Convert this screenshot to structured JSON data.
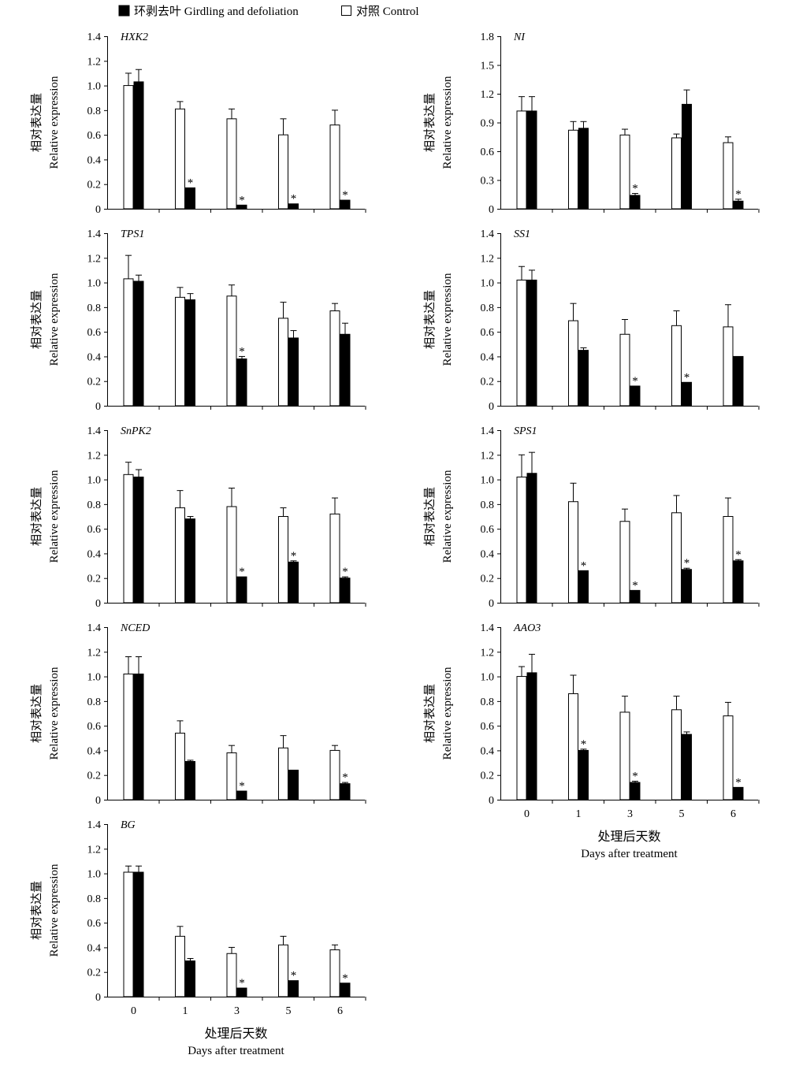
{
  "legend": {
    "girdled": "环剥去叶 Girdling and defoliation",
    "control": "对照 Control",
    "girdled_color": "#000000",
    "control_color": "#ffffff"
  },
  "y_label_cn": "相对表达量",
  "y_label_en": "Relative expression",
  "x_label_cn": "处理后天数",
  "x_label_en": "Days after treatment",
  "sig_marker": "*",
  "chart_data": [
    {
      "type": "bar",
      "gene": "HXK2",
      "categories": [
        "0",
        "1",
        "3",
        "5",
        "6"
      ],
      "ylim": [
        0,
        1.4
      ],
      "yticks": [
        "0",
        "0.2",
        "0.4",
        "0.6",
        "0.8",
        "1.0",
        "1.2",
        "1.4"
      ],
      "series": [
        {
          "name": "对照 Control",
          "values": [
            1.0,
            0.81,
            0.73,
            0.6,
            0.68
          ],
          "errors": [
            0.1,
            0.06,
            0.08,
            0.13,
            0.12
          ],
          "significant": [
            false,
            false,
            false,
            false,
            false
          ]
        },
        {
          "name": "环剥去叶 Girdling and defoliation",
          "values": [
            1.03,
            0.17,
            0.03,
            0.04,
            0.07
          ],
          "errors": [
            0.1,
            0,
            0,
            0,
            0
          ],
          "significant": [
            false,
            true,
            true,
            true,
            true
          ]
        }
      ]
    },
    {
      "type": "bar",
      "gene": "NI",
      "categories": [
        "0",
        "1",
        "3",
        "5",
        "6"
      ],
      "ylim": [
        0,
        1.8
      ],
      "yticks": [
        "0",
        "0.3",
        "0.6",
        "0.9",
        "1.2",
        "1.5",
        "1.8"
      ],
      "series": [
        {
          "name": "对照 Control",
          "values": [
            1.02,
            0.82,
            0.77,
            0.74,
            0.69
          ],
          "errors": [
            0.15,
            0.09,
            0.06,
            0.04,
            0.06
          ],
          "significant": [
            false,
            false,
            false,
            false,
            false
          ]
        },
        {
          "name": "环剥去叶 Girdling and defoliation",
          "values": [
            1.02,
            0.84,
            0.14,
            1.09,
            0.08
          ],
          "errors": [
            0.15,
            0.07,
            0.02,
            0.15,
            0.02
          ],
          "significant": [
            false,
            false,
            true,
            false,
            true
          ]
        }
      ]
    },
    {
      "type": "bar",
      "gene": "TPS1",
      "categories": [
        "0",
        "1",
        "3",
        "5",
        "6"
      ],
      "ylim": [
        0,
        1.4
      ],
      "yticks": [
        "0",
        "0.2",
        "0.4",
        "0.6",
        "0.8",
        "1.0",
        "1.2",
        "1.4"
      ],
      "series": [
        {
          "name": "对照 Control",
          "values": [
            1.03,
            0.88,
            0.89,
            0.71,
            0.77
          ],
          "errors": [
            0.19,
            0.08,
            0.09,
            0.13,
            0.06
          ],
          "significant": [
            false,
            false,
            false,
            false,
            false
          ]
        },
        {
          "name": "环剥去叶 Girdling and defoliation",
          "values": [
            1.01,
            0.86,
            0.38,
            0.55,
            0.58
          ],
          "errors": [
            0.05,
            0.05,
            0.02,
            0.06,
            0.09
          ],
          "significant": [
            false,
            false,
            true,
            false,
            false
          ]
        }
      ]
    },
    {
      "type": "bar",
      "gene": "SS1",
      "categories": [
        "0",
        "1",
        "3",
        "5",
        "6"
      ],
      "ylim": [
        0,
        1.4
      ],
      "yticks": [
        "0",
        "0.2",
        "0.4",
        "0.6",
        "0.8",
        "1.0",
        "1.2",
        "1.4"
      ],
      "series": [
        {
          "name": "对照 Control",
          "values": [
            1.02,
            0.69,
            0.58,
            0.65,
            0.64
          ],
          "errors": [
            0.11,
            0.14,
            0.12,
            0.12,
            0.18
          ],
          "significant": [
            false,
            false,
            false,
            false,
            false
          ]
        },
        {
          "name": "环剥去叶 Girdling and defoliation",
          "values": [
            1.02,
            0.45,
            0.16,
            0.19,
            0.4
          ],
          "errors": [
            0.08,
            0.02,
            0,
            0,
            0
          ],
          "significant": [
            false,
            false,
            true,
            true,
            false
          ]
        }
      ]
    },
    {
      "type": "bar",
      "gene": "SnPK2",
      "categories": [
        "0",
        "1",
        "3",
        "5",
        "6"
      ],
      "ylim": [
        0,
        1.4
      ],
      "yticks": [
        "0",
        "0.2",
        "0.4",
        "0.6",
        "0.8",
        "1.0",
        "1.2",
        "1.4"
      ],
      "series": [
        {
          "name": "对照 Control",
          "values": [
            1.04,
            0.77,
            0.78,
            0.7,
            0.72
          ],
          "errors": [
            0.1,
            0.14,
            0.15,
            0.07,
            0.13
          ],
          "significant": [
            false,
            false,
            false,
            false,
            false
          ]
        },
        {
          "name": "环剥去叶 Girdling and defoliation",
          "values": [
            1.02,
            0.68,
            0.21,
            0.33,
            0.2
          ],
          "errors": [
            0.06,
            0.02,
            0,
            0.01,
            0.01
          ],
          "significant": [
            false,
            false,
            true,
            true,
            true
          ]
        }
      ]
    },
    {
      "type": "bar",
      "gene": "SPS1",
      "categories": [
        "0",
        "1",
        "3",
        "5",
        "6"
      ],
      "ylim": [
        0,
        1.4
      ],
      "yticks": [
        "0",
        "0.2",
        "0.4",
        "0.6",
        "0.8",
        "1.0",
        "1.2",
        "1.4"
      ],
      "series": [
        {
          "name": "对照 Control",
          "values": [
            1.02,
            0.82,
            0.66,
            0.73,
            0.7
          ],
          "errors": [
            0.18,
            0.15,
            0.1,
            0.14,
            0.15
          ],
          "significant": [
            false,
            false,
            false,
            false,
            false
          ]
        },
        {
          "name": "环剥去叶 Girdling and defoliation",
          "values": [
            1.05,
            0.26,
            0.1,
            0.27,
            0.34
          ],
          "errors": [
            0.17,
            0,
            0,
            0.01,
            0.01
          ],
          "significant": [
            false,
            true,
            true,
            true,
            true
          ]
        }
      ]
    },
    {
      "type": "bar",
      "gene": "NCED",
      "categories": [
        "0",
        "1",
        "3",
        "5",
        "6"
      ],
      "ylim": [
        0,
        1.4
      ],
      "yticks": [
        "0",
        "0.2",
        "0.4",
        "0.6",
        "0.8",
        "1.0",
        "1.2",
        "1.4"
      ],
      "series": [
        {
          "name": "对照 Control",
          "values": [
            1.02,
            0.54,
            0.38,
            0.42,
            0.4
          ],
          "errors": [
            0.14,
            0.1,
            0.06,
            0.1,
            0.04
          ],
          "significant": [
            false,
            false,
            false,
            false,
            false
          ]
        },
        {
          "name": "环剥去叶 Girdling and defoliation",
          "values": [
            1.02,
            0.31,
            0.07,
            0.24,
            0.13
          ],
          "errors": [
            0.14,
            0.01,
            0,
            0,
            0.01
          ],
          "significant": [
            false,
            false,
            true,
            false,
            true
          ]
        }
      ]
    },
    {
      "type": "bar",
      "gene": "AAO3",
      "categories": [
        "0",
        "1",
        "3",
        "5",
        "6"
      ],
      "ylim": [
        0,
        1.4
      ],
      "yticks": [
        "0",
        "0.2",
        "0.4",
        "0.6",
        "0.8",
        "1.0",
        "1.2",
        "1.4"
      ],
      "series": [
        {
          "name": "对照 Control",
          "values": [
            1.0,
            0.86,
            0.71,
            0.73,
            0.68
          ],
          "errors": [
            0.08,
            0.15,
            0.13,
            0.11,
            0.11
          ],
          "significant": [
            false,
            false,
            false,
            false,
            false
          ]
        },
        {
          "name": "环剥去叶 Girdling and defoliation",
          "values": [
            1.03,
            0.4,
            0.14,
            0.53,
            0.1
          ],
          "errors": [
            0.15,
            0.01,
            0.01,
            0.02,
            0
          ],
          "significant": [
            false,
            true,
            true,
            false,
            true
          ]
        }
      ]
    },
    {
      "type": "bar",
      "gene": "BG",
      "categories": [
        "0",
        "1",
        "3",
        "5",
        "6"
      ],
      "ylim": [
        0,
        1.4
      ],
      "yticks": [
        "0",
        "0.2",
        "0.4",
        "0.6",
        "0.8",
        "1.0",
        "1.2",
        "1.4"
      ],
      "series": [
        {
          "name": "对照 Control",
          "values": [
            1.01,
            0.49,
            0.35,
            0.42,
            0.38
          ],
          "errors": [
            0.05,
            0.08,
            0.05,
            0.07,
            0.04
          ],
          "significant": [
            false,
            false,
            false,
            false,
            false
          ]
        },
        {
          "name": "环剥去叶 Girdling and defoliation",
          "values": [
            1.01,
            0.29,
            0.07,
            0.13,
            0.11
          ],
          "errors": [
            0.05,
            0.02,
            0,
            0,
            0
          ],
          "significant": [
            false,
            false,
            true,
            true,
            true
          ]
        }
      ]
    }
  ]
}
